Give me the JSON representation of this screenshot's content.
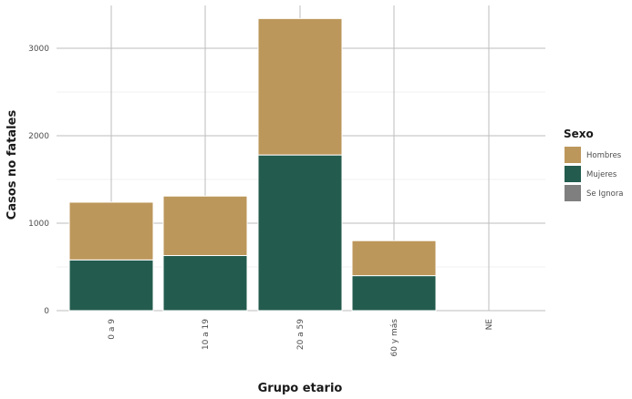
{
  "chart_data": {
    "type": "bar",
    "stacked": true,
    "categories": [
      "0 a 9",
      "10 a 19",
      "20 a 59",
      "60 y más",
      "NE"
    ],
    "series": [
      {
        "name": "Hombres",
        "values": [
          660,
          680,
          1560,
          400,
          0
        ],
        "color": "#bc975b"
      },
      {
        "name": "Mujeres",
        "values": [
          580,
          630,
          1780,
          400,
          0
        ],
        "color": "#235c4e"
      },
      {
        "name": "Se Ignora",
        "values": [
          0,
          0,
          0,
          0,
          0
        ],
        "color": "#7f7f7f"
      }
    ],
    "xlabel": "Grupo etario",
    "ylabel": "Casos no fatales",
    "ylim": [
      0,
      3500
    ],
    "yticks": [
      0,
      1000,
      2000,
      3000
    ],
    "legend": {
      "title": "Sexo",
      "position": "right"
    },
    "grid": true
  }
}
